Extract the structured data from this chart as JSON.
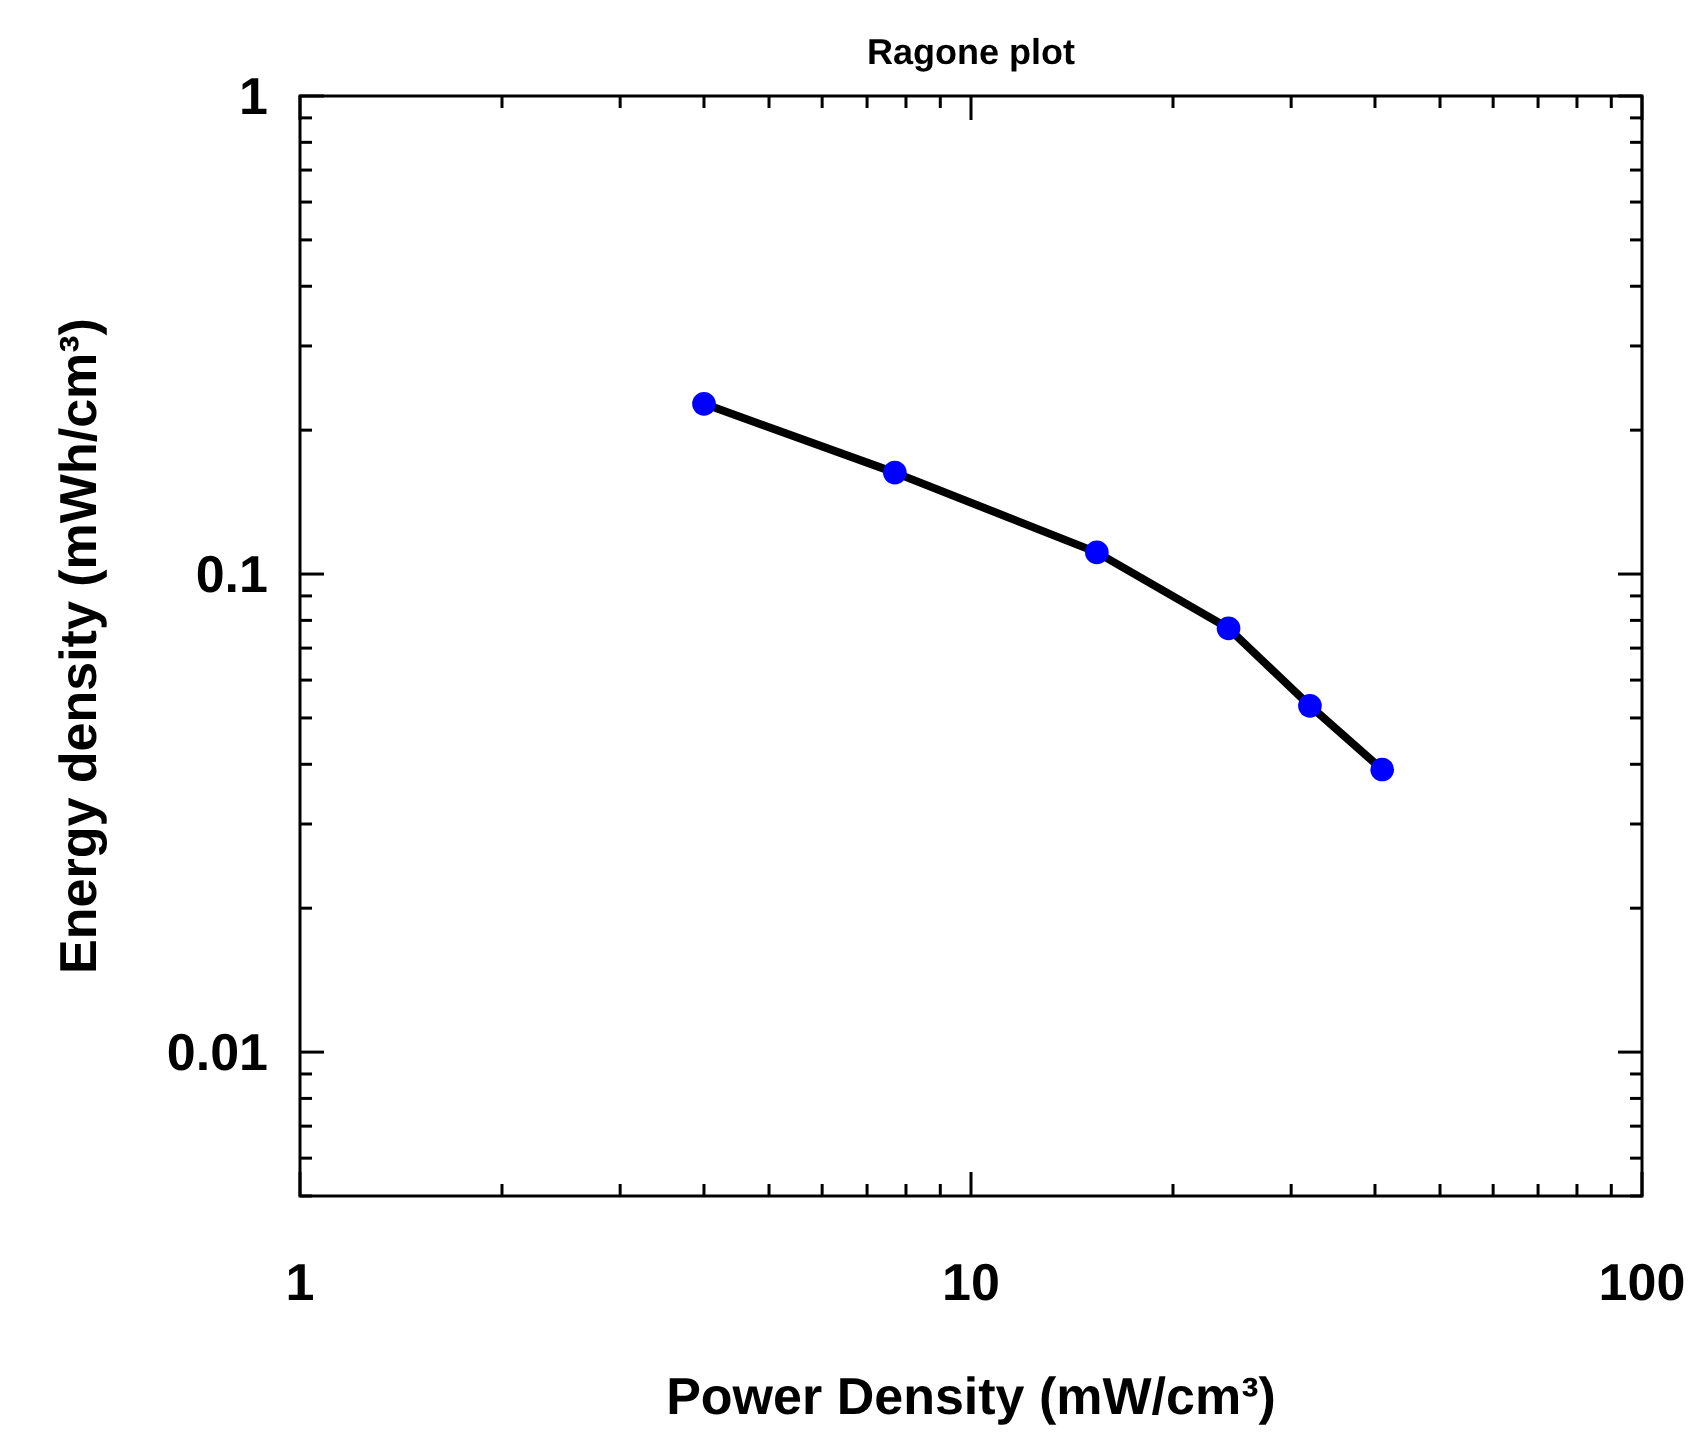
{
  "chart_data": {
    "type": "line",
    "title": "Ragone plot",
    "xlabel": "Power Density (mW/cm³)",
    "ylabel": "Energy density (mWh/cm³)",
    "log": "xy",
    "grid": false,
    "xlim": [
      1,
      100
    ],
    "ylim": [
      0.005,
      1
    ],
    "xticks": [
      1,
      {
        "value": 2,
        "label": null
      },
      {
        "value": 3,
        "label": null
      },
      {
        "value": 4,
        "label": null
      },
      {
        "value": 5,
        "label": null
      },
      {
        "value": 6,
        "label": null
      },
      {
        "value": 7,
        "label": null
      },
      {
        "value": 8,
        "label": null
      },
      {
        "value": 9,
        "label": null
      },
      10,
      {
        "value": 20,
        "label": null
      },
      {
        "value": 30,
        "label": null
      },
      {
        "value": 40,
        "label": null
      },
      {
        "value": 50,
        "label": null
      },
      {
        "value": 60,
        "label": null
      },
      {
        "value": 70,
        "label": null
      },
      {
        "value": 80,
        "label": null
      },
      {
        "value": 90,
        "label": null
      },
      100
    ],
    "yticks": [
      {
        "value": 0.005,
        "label": null
      },
      {
        "value": 0.006,
        "label": null
      },
      {
        "value": 0.007,
        "label": null
      },
      {
        "value": 0.008,
        "label": null
      },
      {
        "value": 0.009,
        "label": null
      },
      0.01,
      {
        "value": 0.02,
        "label": null
      },
      {
        "value": 0.03,
        "label": null
      },
      {
        "value": 0.04,
        "label": null
      },
      {
        "value": 0.05,
        "label": null
      },
      {
        "value": 0.06,
        "label": null
      },
      {
        "value": 0.07,
        "label": null
      },
      {
        "value": 0.08,
        "label": null
      },
      {
        "value": 0.09,
        "label": null
      },
      0.1,
      {
        "value": 0.2,
        "label": null
      },
      {
        "value": 0.3,
        "label": null
      },
      {
        "value": 0.4,
        "label": null
      },
      {
        "value": 0.5,
        "label": null
      },
      {
        "value": 0.6,
        "label": null
      },
      {
        "value": 0.7,
        "label": null
      },
      {
        "value": 0.8,
        "label": null
      },
      {
        "value": 0.9,
        "label": null
      },
      1
    ],
    "x": [
      4.0,
      7.7,
      15.4,
      24.2,
      32.0,
      41.0
    ],
    "series": [
      {
        "type": "line",
        "color": "#000000",
        "marker": "none",
        "values": [
          0.227,
          0.163,
          0.111,
          0.077,
          0.053,
          0.039
        ]
      },
      {
        "type": "scatter",
        "color": "#0000ff",
        "marker": "circle",
        "values": [
          0.227,
          0.163,
          0.111,
          0.077,
          0.053,
          0.039
        ]
      }
    ]
  }
}
